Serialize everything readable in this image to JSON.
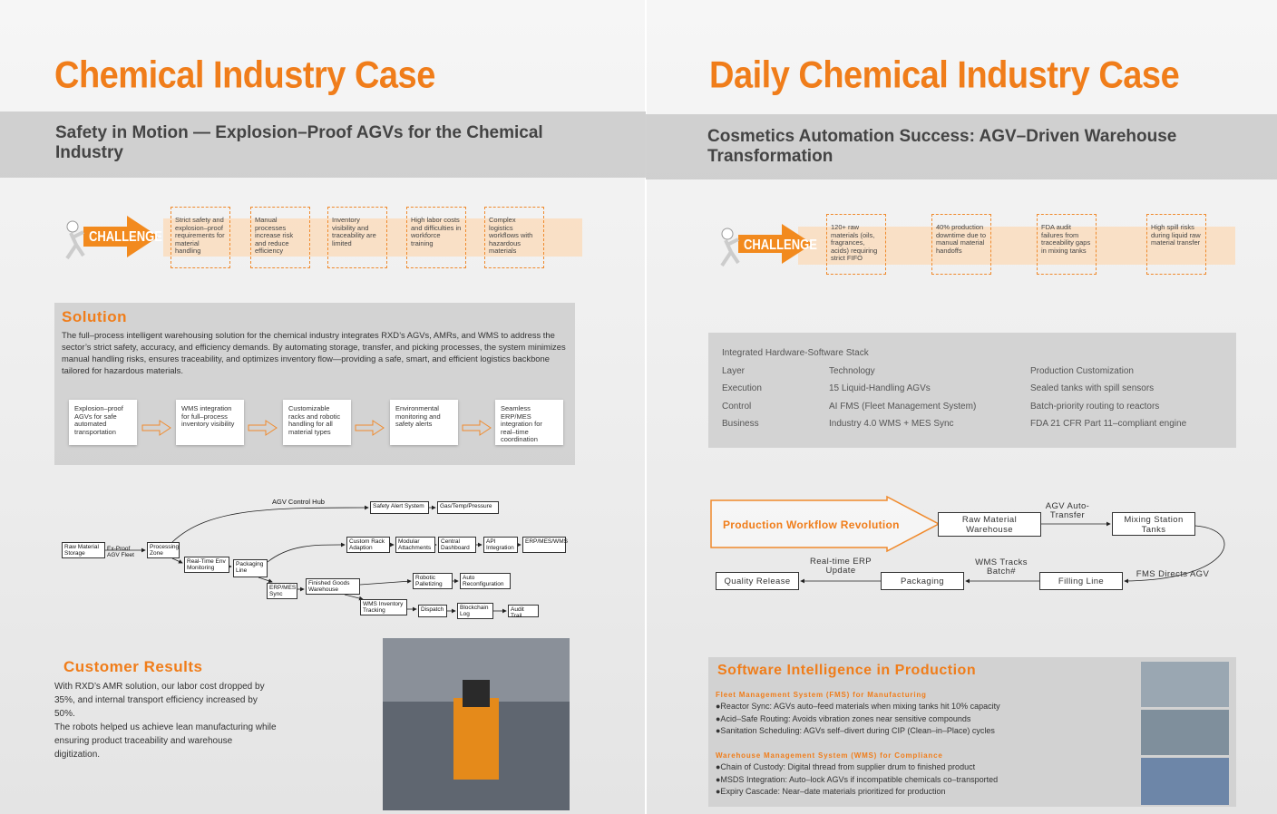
{
  "left": {
    "title": "Chemical Industry Case",
    "subtitle": "Safety in Motion — Explosion–Proof AGVs for the Chemical Industry",
    "challenge_label": "CHALLENGE",
    "challenges": [
      "Strict safety and explosion–proof requirements for material handling",
      "Manual processes increase risk and reduce efficiency",
      "Inventory visibility and traceability are limited",
      "High labor costs and difficulties in workforce training",
      "Complex logistics workflows with hazardous materials"
    ],
    "solution": {
      "heading": "Solution",
      "text": "The full–process intelligent warehousing solution for the chemical industry integrates RXD’s AGVs, AMRs, and WMS to address the sector’s strict safety, accuracy, and efficiency demands. By automating storage, transfer, and picking processes, the system minimizes manual handling risks, ensures traceability, and optimizes inventory flow—providing a safe, smart, and efficient logistics backbone tailored for hazardous materials.",
      "steps": [
        "Explosion–proof AGVs for safe automated transportation",
        "WMS integration for full–process inventory visibility",
        "Customizable racks and robotic handling for all material types",
        "Environmental monitoring and safety alerts",
        "Seamless ERP/MES integration for real–time coordination"
      ]
    },
    "flow": {
      "hub": "AGV Control Hub",
      "fleet": "Ex-Proof AGV Fleet",
      "nodes": [
        "Safety Alert System",
        "Gas/Temp/Pressure",
        "Raw Material Storage",
        "Processing Zone",
        "Real-Time Env Monitoring",
        "Packaging Line",
        "ERP/MES Sync",
        "Custom Rack Adaption",
        "Modular Attachments",
        "Central Dashboard",
        "API Integration",
        "ERP/MES/WMS",
        "Robotic Palletizing",
        "Auto Reconfiguration",
        "Finished Goods Warehouse",
        "WMS Inventory Tracking",
        "Dispatch",
        "Blockchain Log",
        "Audit Trail"
      ]
    },
    "results": {
      "heading": "Customer Results",
      "paragraphs": [
        "With RXD’s AMR solution, our labor cost dropped by 35%, and internal transport efficiency increased by 50%.",
        "The robots helped us achieve lean manufacturing while ensuring product traceability and warehouse digitization."
      ]
    }
  },
  "right": {
    "title": "Daily Chemical Industry Case",
    "subtitle": "Cosmetics Automation Success: AGV–Driven Warehouse Transformation",
    "challenge_label": "CHALLENGE",
    "challenges": [
      "120+ raw materials (oils, fragrances, acids) requiring strict FIFO",
      "40% production downtime due to manual material handoffs",
      "FDA audit failures from traceability gaps in mixing tanks",
      "High spill risks during liquid raw material transfer"
    ],
    "stack": {
      "caption": "Integrated Hardware-Software Stack",
      "header": [
        "Layer",
        "Technology",
        "Production Customization"
      ],
      "rows": [
        [
          "Execution",
          "15 Liquid-Handling AGVs",
          "Sealed tanks with spill sensors"
        ],
        [
          "Control",
          "AI FMS (Fleet Management System)",
          "Batch-priority routing to reactors"
        ],
        [
          "Business",
          "Industry 4.0 WMS + MES Sync",
          "FDA 21 CFR Part 11–compliant engine"
        ]
      ]
    },
    "workflow": {
      "title": "Production Workflow Revolution",
      "nodes": [
        "Raw Material Warehouse",
        "Mixing Station Tanks",
        "Filling Line",
        "Packaging",
        "Quality Release"
      ],
      "edges": [
        "AGV Auto-Transfer",
        "FMS Directs AGV",
        "WMS Tracks Batch#",
        "Real-time ERP Update"
      ]
    },
    "software": {
      "heading": "Software Intelligence in Production",
      "sections": [
        {
          "title": "Fleet Management System (FMS) for Manufacturing",
          "items": [
            "●Reactor Sync: AGVs auto–feed materials when mixing tanks hit 10% capacity",
            "●Acid–Safe Routing: Avoids vibration zones near sensitive compounds",
            "●Sanitation Scheduling: AGVs self–divert during CIP (Clean–in–Place) cycles"
          ]
        },
        {
          "title": "Warehouse Management System (WMS) for Compliance",
          "items": [
            "●Chain of Custody: Digital thread from supplier drum to finished product",
            "●MSDS Integration: Auto–lock AGVs if incompatible chemicals co–transported",
            "●Expiry Cascade: Near–date materials prioritized for production"
          ]
        }
      ]
    }
  }
}
